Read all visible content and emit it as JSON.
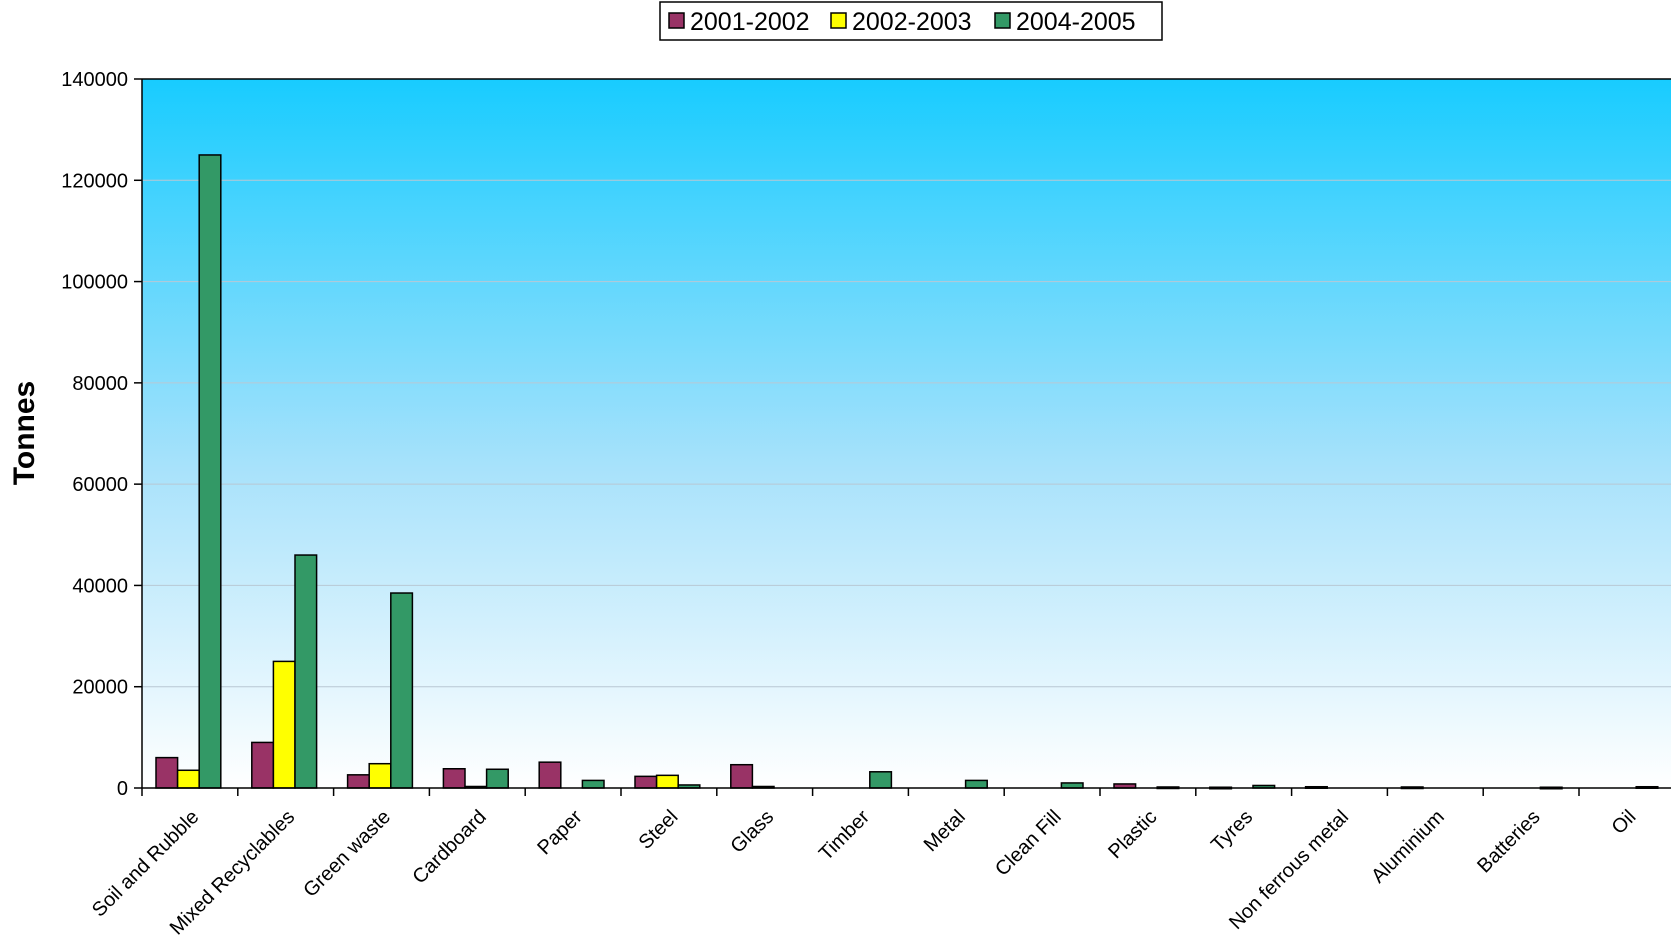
{
  "chart_data": {
    "type": "bar",
    "title": "",
    "xlabel": "",
    "ylabel": "Tonnes",
    "ylim": [
      0,
      140000
    ],
    "yticks": [
      0,
      20000,
      40000,
      60000,
      80000,
      100000,
      120000,
      140000
    ],
    "grid": true,
    "legend_position": "top-center",
    "categories": [
      "Soil and Rubble",
      "Mixed Recyclables",
      "Green waste",
      "Cardboard",
      "Paper",
      "Steel",
      "Glass",
      "Timber",
      "Metal",
      "Clean Fill",
      "Plastic",
      "Tyres",
      "Non ferrous metal",
      "Aluminium",
      "Batteries",
      "Oil"
    ],
    "series": [
      {
        "name": "2001-2002",
        "color": "#993366",
        "values": [
          6000,
          9000,
          2600,
          3800,
          5100,
          2300,
          4600,
          0,
          0,
          0,
          800,
          150,
          250,
          200,
          0,
          0
        ]
      },
      {
        "name": "2002-2003",
        "color": "#ffff00",
        "values": [
          3500,
          25000,
          4800,
          300,
          0,
          2500,
          300,
          0,
          0,
          0,
          0,
          0,
          0,
          0,
          0,
          0
        ]
      },
      {
        "name": "2004-2005",
        "color": "#339966",
        "values": [
          125000,
          46000,
          38500,
          3700,
          1500,
          600,
          0,
          3200,
          1500,
          1000,
          200,
          500,
          0,
          0,
          150,
          250
        ]
      }
    ]
  }
}
